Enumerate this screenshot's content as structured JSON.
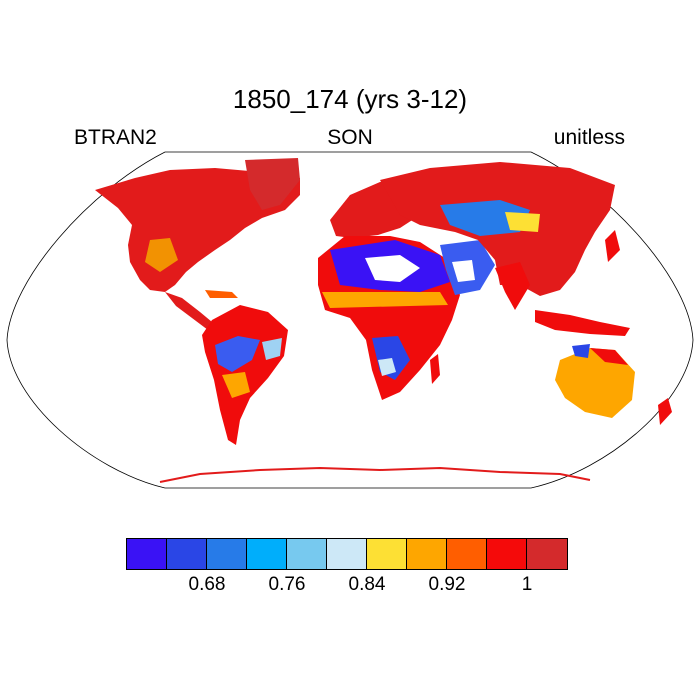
{
  "title": "1850_174 (yrs 3-12)",
  "left_label": "BTRAN2",
  "center_label": "SON",
  "right_label": "unitless",
  "colorbar": {
    "colors": [
      "#3a12f5",
      "#2a46e6",
      "#277be8",
      "#00aefb",
      "#77c9ef",
      "#cde8f7",
      "#fde034",
      "#fea600",
      "#ff5e00",
      "#f50a0a",
      "#d42a2c"
    ],
    "tick_labels": [
      "0.68",
      "0.76",
      "0.84",
      "0.92",
      "1"
    ]
  },
  "map": {
    "projection": "robinson",
    "land_fill": "#e81a1a",
    "ocean_fill": "#ffffff"
  }
}
